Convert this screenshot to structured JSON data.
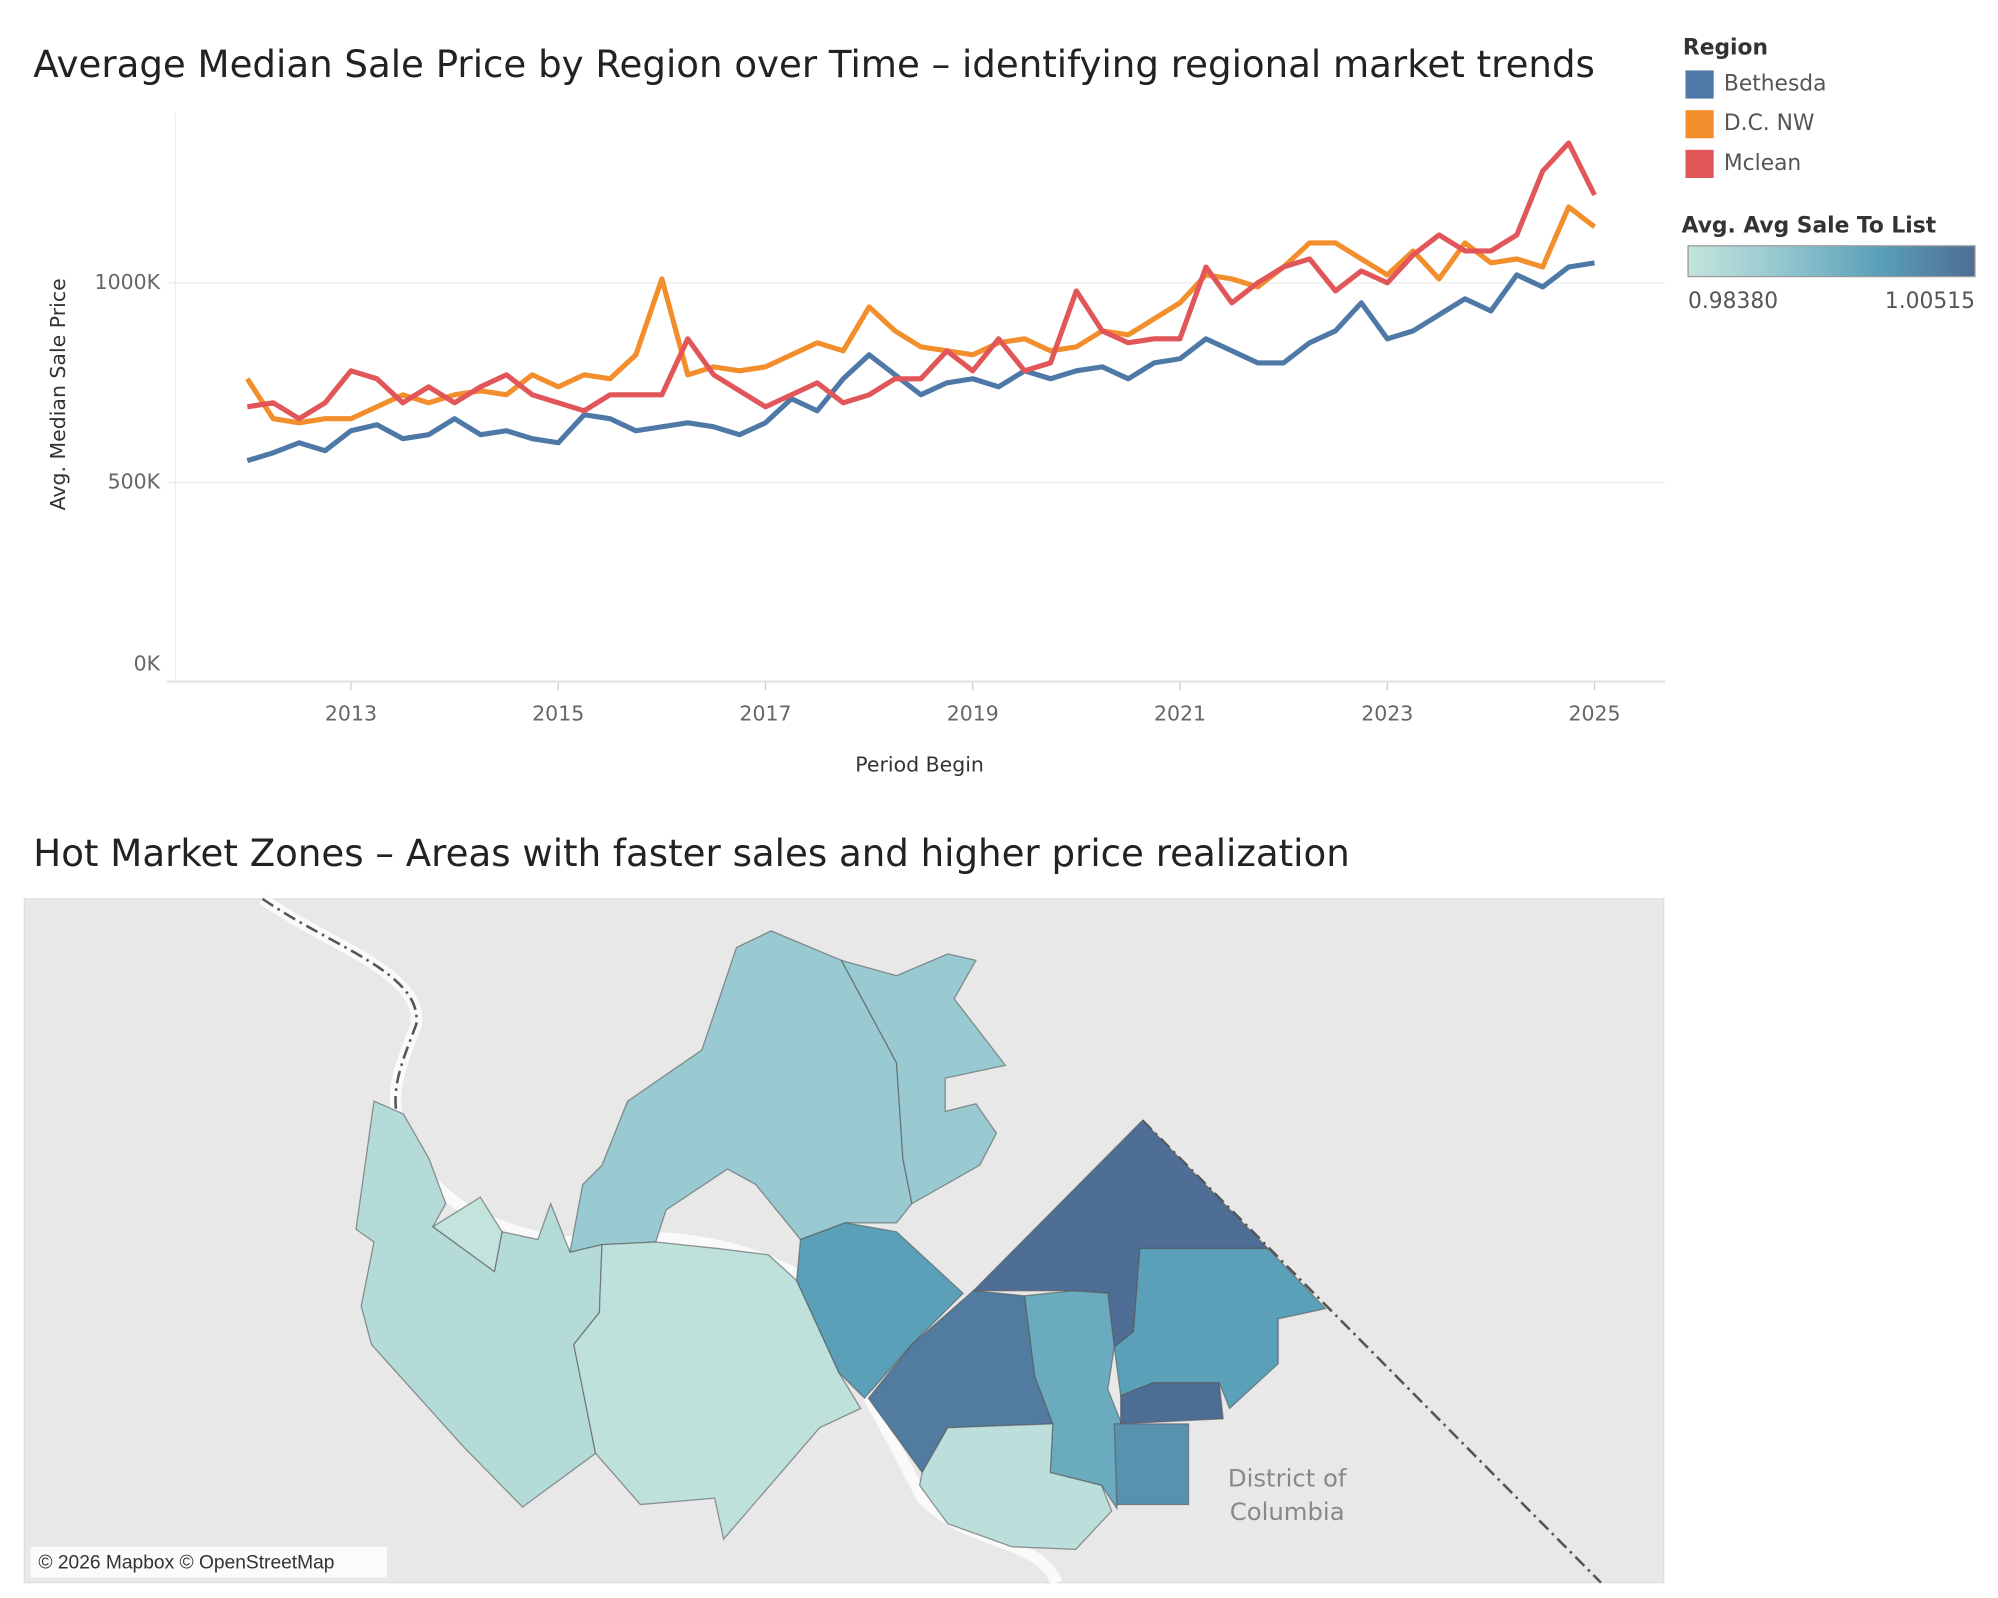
{
  "chart_data": [
    {
      "type": "line",
      "title": "Average Median Sale Price by Region over Time – identifying regional market trends",
      "x_label": "Period Begin",
      "y_label": "Avg. Median Sale Price",
      "legend_title": "Region",
      "legend_position": "right",
      "grid": true,
      "x": [
        2012,
        2012.25,
        2012.5,
        2012.75,
        2013,
        2013.25,
        2013.5,
        2013.75,
        2014,
        2014.25,
        2014.5,
        2014.75,
        2015,
        2015.25,
        2015.5,
        2015.75,
        2016,
        2016.25,
        2016.5,
        2016.75,
        2017,
        2017.25,
        2017.5,
        2017.75,
        2018,
        2018.25,
        2018.5,
        2018.75,
        2019,
        2019.25,
        2019.5,
        2019.75,
        2020,
        2020.25,
        2020.5,
        2020.75,
        2021,
        2021.25,
        2021.5,
        2021.75,
        2022,
        2022.25,
        2022.5,
        2022.75,
        2023,
        2023.25,
        2023.5,
        2023.75,
        2024,
        2024.25,
        2024.5,
        2024.75,
        2025
      ],
      "xlim": [
        2011.22,
        2025.68
      ],
      "xticks": [
        2013,
        2015,
        2017,
        2019,
        2021,
        2023,
        2025
      ],
      "ylim": [
        0,
        1426000
      ],
      "yticks": [
        {
          "value": 0,
          "label": "0K"
        },
        {
          "value": 500000,
          "label": "500K"
        },
        {
          "value": 1000000,
          "label": "1000K"
        }
      ],
      "series": [
        {
          "name": "Bethesda",
          "color": "#4e79a7",
          "values": [
            555000,
            575000,
            600000,
            580000,
            630000,
            645000,
            610000,
            620000,
            660000,
            620000,
            630000,
            610000,
            600000,
            670000,
            660000,
            630000,
            640000,
            650000,
            640000,
            620000,
            650000,
            710000,
            680000,
            760000,
            820000,
            770000,
            720000,
            750000,
            760000,
            740000,
            780000,
            760000,
            780000,
            790000,
            760000,
            800000,
            810000,
            860000,
            830000,
            800000,
            800000,
            850000,
            880000,
            950000,
            860000,
            880000,
            920000,
            960000,
            930000,
            1020000,
            990000,
            1040000,
            1050000
          ]
        },
        {
          "name": "D.C. NW",
          "color": "#f28e2b",
          "values": [
            760000,
            660000,
            650000,
            660000,
            660000,
            690000,
            720000,
            700000,
            720000,
            730000,
            720000,
            770000,
            740000,
            770000,
            760000,
            820000,
            1010000,
            770000,
            790000,
            780000,
            790000,
            820000,
            850000,
            830000,
            940000,
            880000,
            840000,
            830000,
            820000,
            850000,
            860000,
            830000,
            840000,
            880000,
            870000,
            910000,
            950000,
            1020000,
            1010000,
            990000,
            1040000,
            1100000,
            1100000,
            1060000,
            1020000,
            1080000,
            1010000,
            1100000,
            1050000,
            1060000,
            1040000,
            1190000,
            1140000
          ]
        },
        {
          "name": "Mclean",
          "color": "#e15759",
          "values": [
            690000,
            700000,
            660000,
            700000,
            780000,
            760000,
            700000,
            740000,
            700000,
            740000,
            770000,
            720000,
            700000,
            680000,
            720000,
            720000,
            720000,
            860000,
            770000,
            730000,
            690000,
            720000,
            750000,
            700000,
            720000,
            760000,
            760000,
            830000,
            780000,
            860000,
            780000,
            800000,
            980000,
            880000,
            850000,
            860000,
            860000,
            1040000,
            950000,
            1000000,
            1040000,
            1060000,
            980000,
            1030000,
            1000000,
            1070000,
            1120000,
            1080000,
            1080000,
            1120000,
            1280000,
            1350000,
            1220000
          ]
        }
      ]
    },
    {
      "type": "map",
      "title": "Hot Market Zones – Areas with faster sales and higher price realization",
      "place_label": "District of Columbia",
      "attribution": "© 2026 Mapbox © OpenStreetMap",
      "color_legend": {
        "title": "Avg. Avg Sale To List",
        "min": {
          "value": 0.9838,
          "label": "0.98380"
        },
        "max": {
          "value": 1.00515,
          "label": "1.00515"
        },
        "colors": [
          "#c4e4dd",
          "#93c6cf",
          "#5aa0b9",
          "#4e6d94"
        ]
      },
      "values": [
        0.99,
        0.99,
        0.986,
        0.984,
        0.9845,
        0.998,
        1.005,
        0.998,
        1.003,
        0.996,
        1.0051,
        1.0,
        0.985
      ]
    }
  ]
}
